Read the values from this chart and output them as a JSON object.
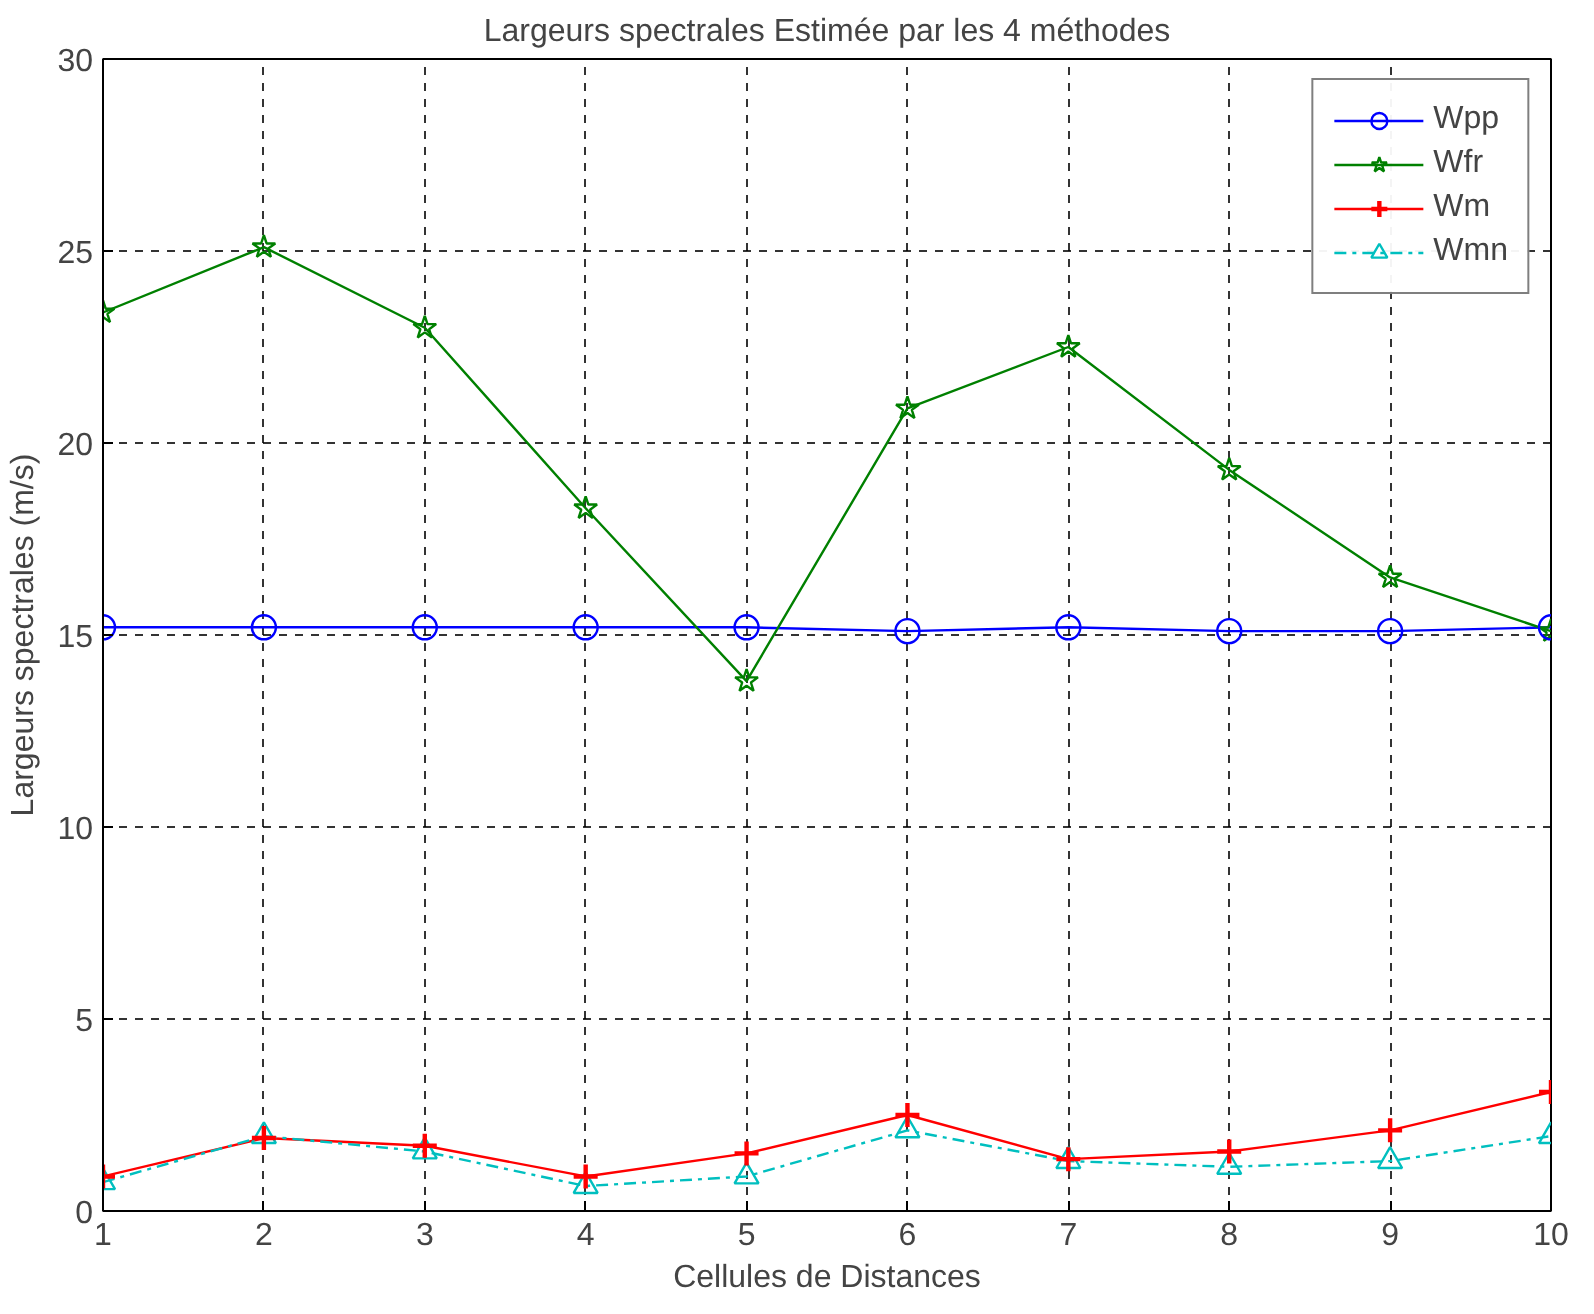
{
  "chart_data": {
    "type": "line",
    "title": "Largeurs spectrales Estimée par les 4 méthodes",
    "xlabel": "Cellules de Distances",
    "ylabel": "Largeurs spectrales (m/s)",
    "x": [
      1,
      2,
      3,
      4,
      5,
      6,
      7,
      8,
      9,
      10
    ],
    "xlim": [
      1,
      10
    ],
    "xticks": [
      1,
      2,
      3,
      4,
      5,
      6,
      7,
      8,
      9,
      10
    ],
    "ylim": [
      0,
      30
    ],
    "yticks": [
      0,
      5,
      10,
      15,
      20,
      25,
      30
    ],
    "grid": true,
    "legend": "top right",
    "series": [
      {
        "name": "Wpp",
        "color": "#0000ff",
        "marker": "circle",
        "line_style": "solid",
        "values": [
          15.2,
          15.2,
          15.2,
          15.2,
          15.2,
          15.1,
          15.2,
          15.1,
          15.1,
          15.2
        ]
      },
      {
        "name": "Wfr",
        "color": "#008000",
        "marker": "star",
        "line_style": "solid",
        "values": [
          23.4,
          25.1,
          23.0,
          18.3,
          13.8,
          20.9,
          22.5,
          19.3,
          16.5,
          15.1
        ]
      },
      {
        "name": "Wm",
        "color": "#ff0000",
        "marker": "cross",
        "line_style": "solid",
        "values": [
          0.9,
          1.9,
          1.7,
          0.9,
          1.5,
          2.5,
          1.35,
          1.55,
          2.1,
          3.1
        ]
      },
      {
        "name": "Wmn",
        "color": "#00bfbf",
        "marker": "triangle",
        "line_style": "dashed",
        "values": [
          0.75,
          1.95,
          1.55,
          0.65,
          0.9,
          2.1,
          1.3,
          1.15,
          1.3,
          1.95
        ]
      }
    ]
  }
}
